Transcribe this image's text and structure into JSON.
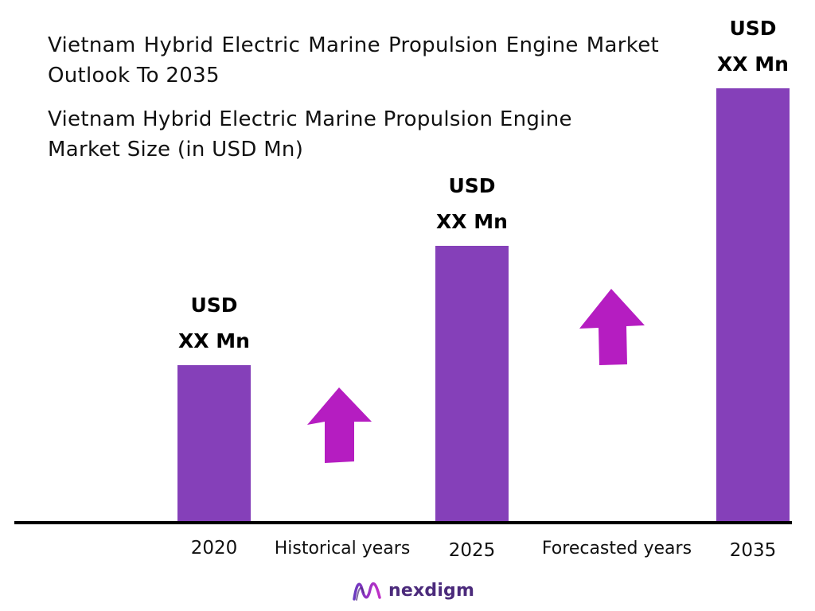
{
  "header": {
    "title": "Vietnam Hybrid Electric Marine Propulsion Engine Market Outlook To 2035",
    "subtitle": "Vietnam Hybrid Electric Marine Propulsion Engine Market Size (in USD Mn)"
  },
  "chart_data": {
    "type": "bar",
    "categories": [
      "2020",
      "2025",
      "2035"
    ],
    "values": [
      33,
      58,
      91
    ],
    "value_labels": [
      {
        "line1": "USD",
        "line2": "XX Mn"
      },
      {
        "line1": "USD",
        "line2": "XX Mn"
      },
      {
        "line1": "USD",
        "line2": "XX Mn"
      }
    ],
    "ylim": [
      0,
      100
    ],
    "grid": false,
    "legend": "none",
    "period_labels": [
      "Historical years",
      "Forecasted years"
    ],
    "growth_arrows": 2
  },
  "colors": {
    "bar": "#8540b9",
    "arrow": "#b51dc1",
    "axis": "#000000",
    "brand": "#4b2a7b"
  },
  "footer": {
    "brand_name": "nexdigm",
    "brand_icon": "nexdigm-logo-icon"
  }
}
